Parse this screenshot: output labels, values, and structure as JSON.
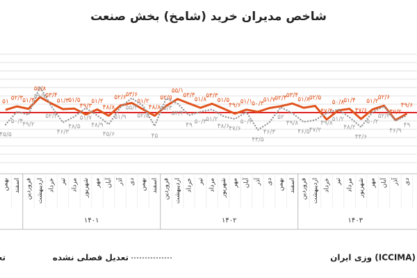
{
  "chart_data": {
    "type": "line",
    "title": "شاخص مدیران خرید (شامخ) بخش صنعت",
    "source": "وزی ایران (ICCIMA)",
    "categories": [
      "بهمن",
      "اسفند",
      "فروردین",
      "اردیبهشت",
      "خرداد",
      "تیر",
      "مرداد",
      "شهریور",
      "مهر",
      "آبان",
      "آذر",
      "دی",
      "بهمن",
      "اسفند",
      "فروردین",
      "اردیبهشت",
      "خرداد",
      "تیر",
      "مرداد",
      "شهریور",
      "مهر",
      "آبان",
      "آذر",
      "دی",
      "بهمن",
      "اسفند",
      "فروردین",
      "اردیبهشت",
      "خرداد",
      "تیر",
      "مرداد",
      "شهریور",
      "مهر",
      "آبان",
      "آذر",
      "دی"
    ],
    "years": [
      "۱۴۰۱",
      "۱۴۰۲",
      "۱۴۰۳"
    ],
    "reference": 50,
    "reference_color": "#e02020",
    "ylim": [
      30,
      70
    ],
    "series": [
      {
        "name": "تعدیل فصلی شده",
        "color": "#e0531c",
        "style": "solid",
        "values": [
          51.0,
          52.3,
          51.4,
          55.8,
          53.4,
          51.3,
          51.5,
          49.3,
          51.2,
          48.8,
          52.6,
          53.6,
          51.2,
          48.8,
          52.5,
          55.1,
          53.4,
          51.8,
          53.3,
          51.5,
          49.6,
          51.1,
          50.3,
          51.7,
          52.4,
          53.4,
          51.8,
          52.5,
          47.4,
          50.8,
          51.4,
          47.6,
          51.2,
          52.6,
          47.2,
          49.6
        ],
        "value_labels": [
          "۵۱",
          "۵۲/۳",
          "۵۱/۴",
          "۵۵/۸",
          "۵۳/۴",
          "۵۱/۳",
          "۵۱/۵",
          "۴۹/۳",
          "۵۱/۲",
          "۴۸/۸",
          "۵۲/۶",
          "۵۳/۶",
          "۵۱/۲",
          "۴۸/۸",
          "۵۲/۵",
          "۵۵/۱",
          "۵۳/۴",
          "۵۱/۸",
          "۵۳/۳",
          "۵۱/۵",
          "۴۹/۶",
          "۵۱/۱",
          "۵۰/۳",
          "۵۱/۷",
          "۵۲/۴",
          "۵۳/۴",
          "۵۱/۸",
          "۵۲/۵",
          "۴۷/۴",
          "۵۰/۸",
          "۵۱/۴",
          "۴۷/۶",
          "۵۱/۲",
          "۵۲/۶",
          "۴۷/۲",
          "۴۹/۶"
        ]
      },
      {
        "name": "تعدیل فصلی نشده",
        "color": "#9a9a9a",
        "style": "dotted",
        "values": [
          45.5,
          50.4,
          49.2,
          59.7,
          52.3,
          46.3,
          48.5,
          51.7,
          48.9,
          45.6,
          51.9,
          55.4,
          52.5,
          45.0,
          55.3,
          53.4,
          49.0,
          50.3,
          51.2,
          48.6,
          47.6,
          50.2,
          43.5,
          46.3,
          52.0,
          49.8,
          46.5,
          47.2,
          49.8,
          51.2,
          48.2,
          44.6,
          50.2,
          52.3,
          46.9,
          49.0
        ],
        "value_labels": [
          "۴۵/۵",
          "۵۰/۴",
          "۴۹/۲",
          "۵۹/۷",
          "۵۲/۳",
          "۴۶/۳",
          "۴۸/۵",
          "۵۱/۷",
          "۴۸/۹",
          "۴۵/۶",
          "۵۱/۹",
          "۵۵/۴",
          "۵۲/۵",
          "۴۵",
          "۵۵/۳",
          "۵۳/۴",
          "۴۹",
          "۵۰/۳",
          "۵۱/۲",
          "۴۸/۶",
          "۴۷/۶",
          "۵۰/۲",
          "۴۳/۵",
          "۴۶/۳",
          "۵۲",
          "۴۹/۸",
          "۴۶/۵",
          "۴۷/۲",
          "۴۹/۸",
          "۵۱/۲",
          "۴۸/۲",
          "۴۴/۶",
          "۵۰/۲",
          "۵۲/۳",
          "۴۶/۹",
          "۴۹"
        ]
      }
    ]
  }
}
